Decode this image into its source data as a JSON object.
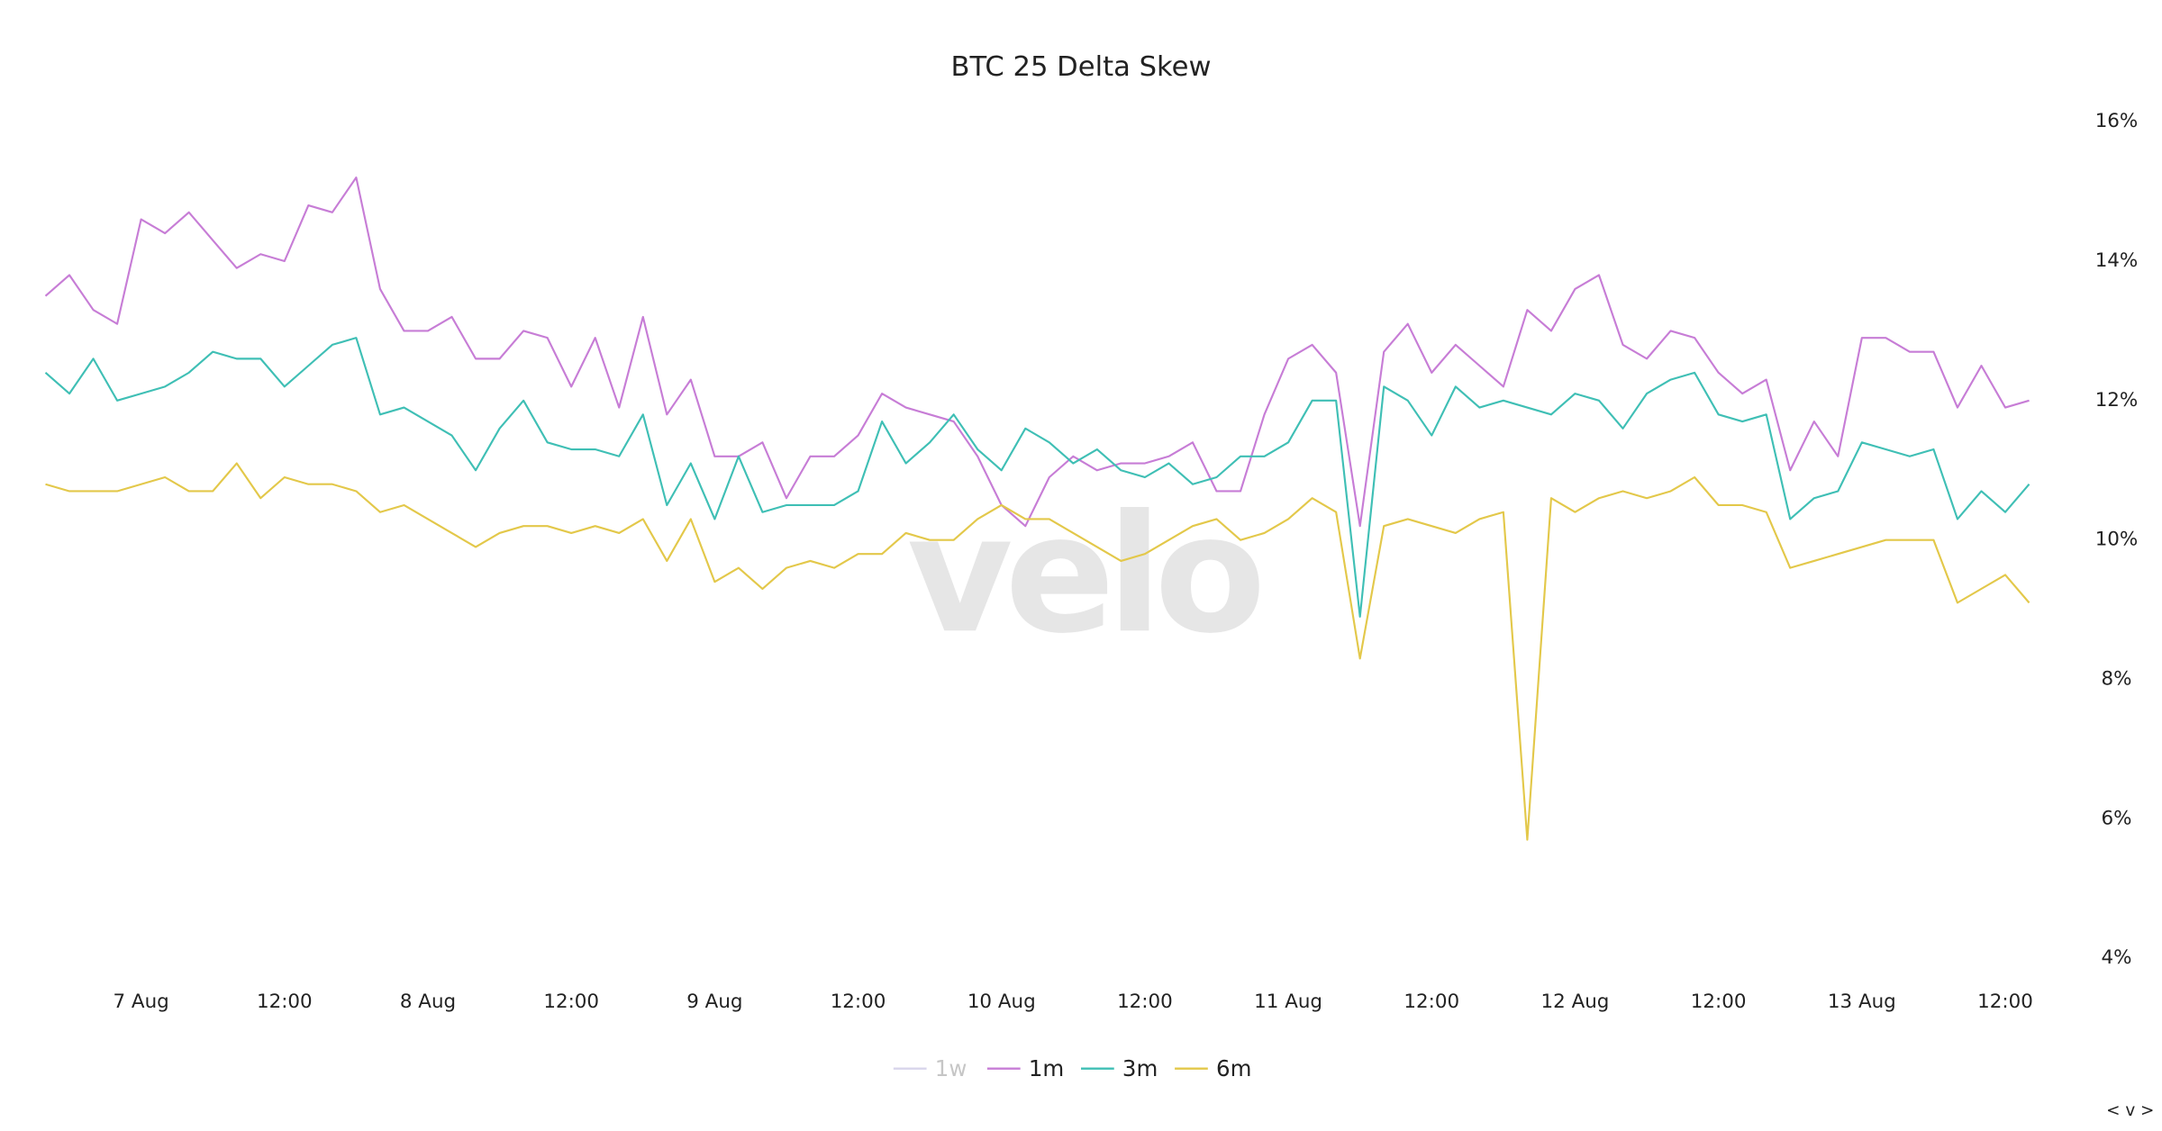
{
  "chart_data": {
    "type": "line",
    "title": "BTC 25 Delta Skew",
    "watermark": "velo",
    "legend_nav": "< v >",
    "x": [
      "6 Aug 16:00",
      "6 Aug 18:00",
      "6 Aug 20:00",
      "6 Aug 22:00",
      "7 Aug 00:00",
      "7 Aug 02:00",
      "7 Aug 04:00",
      "7 Aug 06:00",
      "7 Aug 08:00",
      "7 Aug 10:00",
      "7 Aug 12:00",
      "7 Aug 14:00",
      "7 Aug 16:00",
      "7 Aug 18:00",
      "7 Aug 20:00",
      "7 Aug 22:00",
      "8 Aug 00:00",
      "8 Aug 02:00",
      "8 Aug 04:00",
      "8 Aug 06:00",
      "8 Aug 08:00",
      "8 Aug 10:00",
      "8 Aug 12:00",
      "8 Aug 14:00",
      "8 Aug 16:00",
      "8 Aug 18:00",
      "8 Aug 20:00",
      "8 Aug 22:00",
      "9 Aug 00:00",
      "9 Aug 02:00",
      "9 Aug 04:00",
      "9 Aug 06:00",
      "9 Aug 08:00",
      "9 Aug 10:00",
      "9 Aug 12:00",
      "9 Aug 14:00",
      "9 Aug 16:00",
      "9 Aug 18:00",
      "9 Aug 20:00",
      "9 Aug 22:00",
      "10 Aug 00:00",
      "10 Aug 02:00",
      "10 Aug 04:00",
      "10 Aug 06:00",
      "10 Aug 08:00",
      "10 Aug 10:00",
      "10 Aug 12:00",
      "10 Aug 14:00",
      "10 Aug 16:00",
      "10 Aug 18:00",
      "10 Aug 20:00",
      "10 Aug 22:00",
      "11 Aug 00:00",
      "11 Aug 02:00",
      "11 Aug 04:00",
      "11 Aug 06:00",
      "11 Aug 08:00",
      "11 Aug 10:00",
      "11 Aug 12:00",
      "11 Aug 14:00",
      "11 Aug 16:00",
      "11 Aug 18:00",
      "11 Aug 20:00",
      "11 Aug 22:00",
      "12 Aug 00:00",
      "12 Aug 02:00",
      "12 Aug 04:00",
      "12 Aug 06:00",
      "12 Aug 08:00",
      "12 Aug 10:00",
      "12 Aug 12:00",
      "12 Aug 14:00",
      "12 Aug 16:00",
      "12 Aug 18:00",
      "12 Aug 20:00",
      "12 Aug 22:00",
      "13 Aug 00:00",
      "13 Aug 02:00",
      "13 Aug 04:00",
      "13 Aug 06:00",
      "13 Aug 08:00",
      "13 Aug 10:00",
      "13 Aug 12:00",
      "13 Aug 14:00"
    ],
    "xticks": [
      {
        "value": "7 Aug 00:00",
        "label": "7 Aug"
      },
      {
        "value": "7 Aug 12:00",
        "label": "12:00"
      },
      {
        "value": "8 Aug 00:00",
        "label": "8 Aug"
      },
      {
        "value": "8 Aug 12:00",
        "label": "12:00"
      },
      {
        "value": "9 Aug 00:00",
        "label": "9 Aug"
      },
      {
        "value": "9 Aug 12:00",
        "label": "12:00"
      },
      {
        "value": "10 Aug 00:00",
        "label": "10 Aug"
      },
      {
        "value": "10 Aug 12:00",
        "label": "12:00"
      },
      {
        "value": "11 Aug 00:00",
        "label": "11 Aug"
      },
      {
        "value": "11 Aug 12:00",
        "label": "12:00"
      },
      {
        "value": "12 Aug 00:00",
        "label": "12 Aug"
      },
      {
        "value": "12 Aug 12:00",
        "label": "12:00"
      },
      {
        "value": "13 Aug 00:00",
        "label": "13 Aug"
      },
      {
        "value": "13 Aug 12:00",
        "label": "12:00"
      }
    ],
    "ylim": [
      4,
      16
    ],
    "yticks": [
      {
        "value": 4,
        "label": "4%"
      },
      {
        "value": 6,
        "label": "6%"
      },
      {
        "value": 8,
        "label": "8%"
      },
      {
        "value": 10,
        "label": "10%"
      },
      {
        "value": 12,
        "label": "12%"
      },
      {
        "value": 14,
        "label": "14%"
      },
      {
        "value": 16,
        "label": "16%"
      }
    ],
    "grid": false,
    "series": [
      {
        "name": "1w",
        "color": "#b9b3dc",
        "hidden": true,
        "values": [
          null,
          null,
          null,
          null,
          null,
          null,
          null,
          null,
          null,
          null,
          null,
          null,
          null,
          null,
          null,
          null,
          null,
          null,
          null,
          null,
          null,
          null,
          null,
          null,
          null,
          null,
          null,
          null,
          null,
          null,
          null,
          null,
          null,
          null,
          null,
          null,
          null,
          null,
          null,
          null,
          null,
          null,
          null,
          null,
          null,
          null,
          null,
          null,
          null,
          null,
          null,
          null,
          null,
          null,
          null,
          null,
          null,
          null,
          null,
          null,
          null,
          null,
          null,
          null,
          null,
          null,
          null,
          null,
          null,
          null,
          null,
          null,
          null,
          null,
          null,
          null,
          null,
          null,
          null,
          null,
          null,
          null,
          null,
          null
        ]
      },
      {
        "name": "1m",
        "color": "#c77dd6",
        "values": [
          13.5,
          13.8,
          13.3,
          13.1,
          14.6,
          14.4,
          14.7,
          14.3,
          13.9,
          14.1,
          14.0,
          14.8,
          14.7,
          15.2,
          13.6,
          13.0,
          13.0,
          13.2,
          12.6,
          12.6,
          13.0,
          12.9,
          12.2,
          12.9,
          11.9,
          13.2,
          11.8,
          12.3,
          11.2,
          11.2,
          11.4,
          10.6,
          11.2,
          11.2,
          11.5,
          12.1,
          11.9,
          11.8,
          11.7,
          11.2,
          10.5,
          10.2,
          10.9,
          11.2,
          11.0,
          11.1,
          11.1,
          11.2,
          11.4,
          10.7,
          10.7,
          11.8,
          12.6,
          12.8,
          12.4,
          10.2,
          12.7,
          13.1,
          12.4,
          12.8,
          12.5,
          12.2,
          13.3,
          13.0,
          13.6,
          13.8,
          12.8,
          12.6,
          13.0,
          12.9,
          12.4,
          12.1,
          12.3,
          11.0,
          11.7,
          11.2,
          12.9,
          12.9,
          12.7,
          12.7,
          11.9,
          12.5,
          11.9,
          12.0
        ]
      },
      {
        "name": "3m",
        "color": "#3fbfb5",
        "values": [
          12.4,
          12.1,
          12.6,
          12.0,
          12.1,
          12.2,
          12.4,
          12.7,
          12.6,
          12.6,
          12.2,
          12.5,
          12.8,
          12.9,
          11.8,
          11.9,
          11.7,
          11.5,
          11.0,
          11.6,
          12.0,
          11.4,
          11.3,
          11.3,
          11.2,
          11.8,
          10.5,
          11.1,
          10.3,
          11.2,
          10.4,
          10.5,
          10.5,
          10.5,
          10.7,
          11.7,
          11.1,
          11.4,
          11.8,
          11.3,
          11.0,
          11.6,
          11.4,
          11.1,
          11.3,
          11.0,
          10.9,
          11.1,
          10.8,
          10.9,
          11.2,
          11.2,
          11.4,
          12.0,
          12.0,
          8.9,
          12.2,
          12.0,
          11.5,
          12.2,
          11.9,
          12.0,
          11.9,
          11.8,
          12.1,
          12.0,
          11.6,
          12.1,
          12.3,
          12.4,
          11.8,
          11.7,
          11.8,
          10.3,
          10.6,
          10.7,
          11.4,
          11.3,
          11.2,
          11.3,
          10.3,
          10.7,
          10.4,
          10.8
        ]
      },
      {
        "name": "6m",
        "color": "#e3c84a",
        "values": [
          10.8,
          10.7,
          10.7,
          10.7,
          10.8,
          10.9,
          10.7,
          10.7,
          11.1,
          10.6,
          10.9,
          10.8,
          10.8,
          10.7,
          10.4,
          10.5,
          10.3,
          10.1,
          9.9,
          10.1,
          10.2,
          10.2,
          10.1,
          10.2,
          10.1,
          10.3,
          9.7,
          10.3,
          9.4,
          9.6,
          9.3,
          9.6,
          9.7,
          9.6,
          9.8,
          9.8,
          10.1,
          10.0,
          10.0,
          10.3,
          10.5,
          10.3,
          10.3,
          10.1,
          9.9,
          9.7,
          9.8,
          10.0,
          10.2,
          10.3,
          10.0,
          10.1,
          10.3,
          10.6,
          10.4,
          8.3,
          10.2,
          10.3,
          10.2,
          10.1,
          10.3,
          10.4,
          5.7,
          10.6,
          10.4,
          10.6,
          10.7,
          10.6,
          10.7,
          10.9,
          10.5,
          10.5,
          10.4,
          9.6,
          9.7,
          9.8,
          9.9,
          10.0,
          10.0,
          10.0,
          9.1,
          9.3,
          9.5,
          9.1
        ]
      }
    ]
  }
}
